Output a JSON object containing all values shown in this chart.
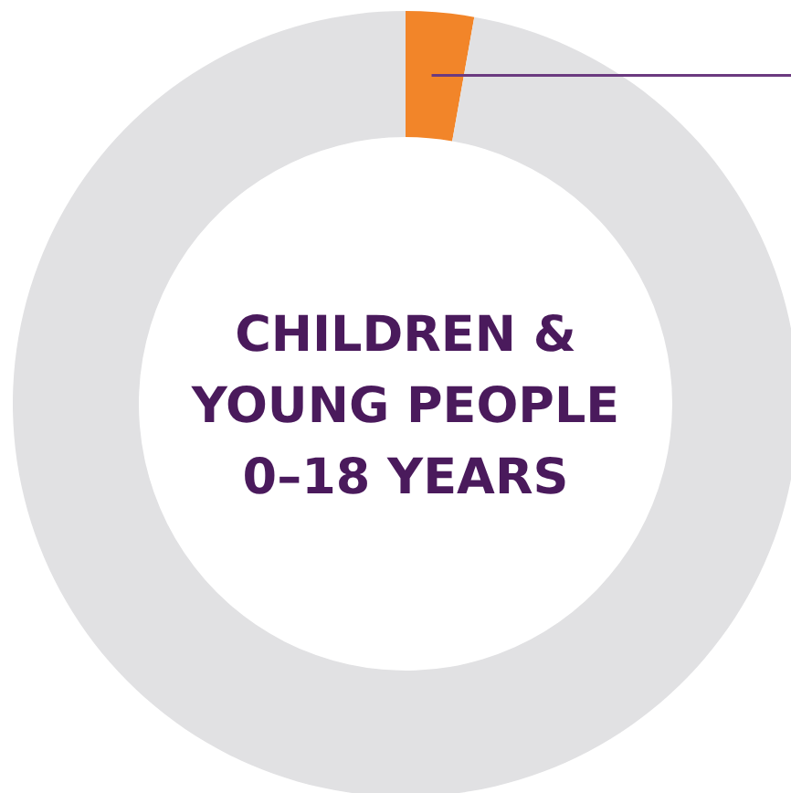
{
  "chart_data": {
    "type": "donut",
    "title": "CHILDREN &\nYOUNG PEOPLE\n0–18 YEARS",
    "categories": [
      null,
      null
    ],
    "values": [
      2.8,
      97.2
    ],
    "colors": [
      "#f28529",
      "#e1e1e3"
    ]
  }
}
